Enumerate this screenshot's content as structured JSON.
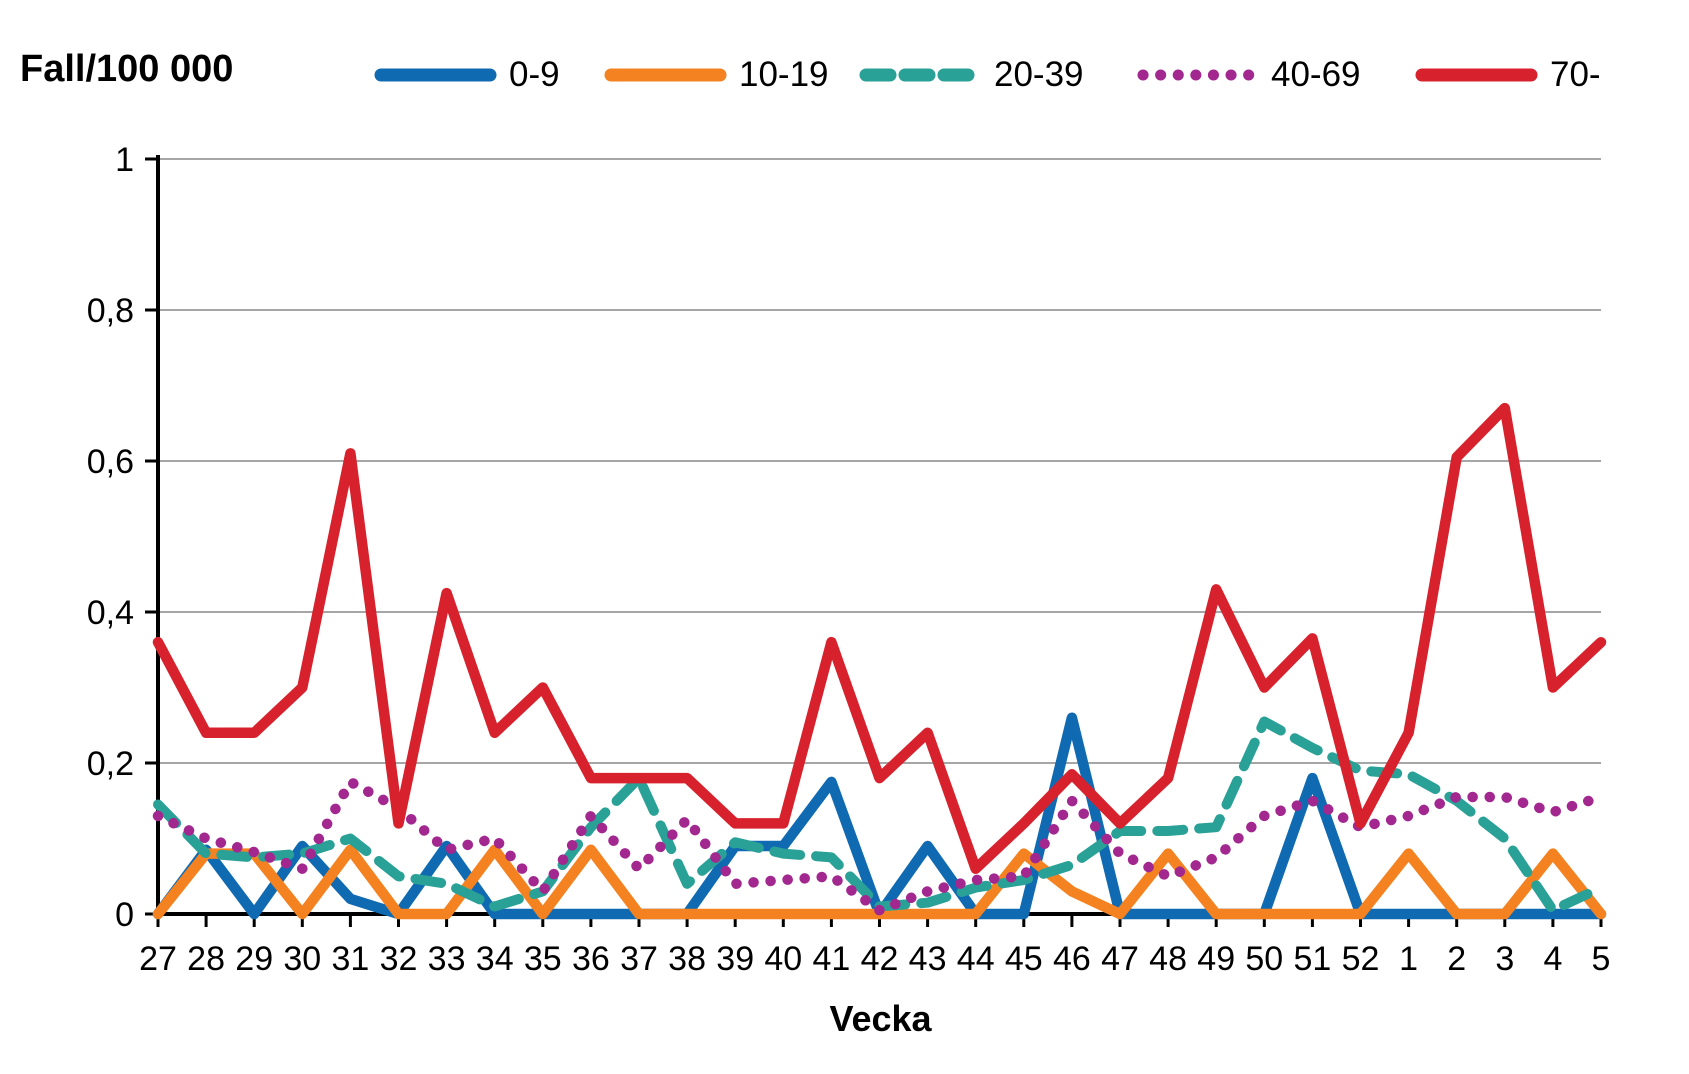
{
  "title": "Fall/100 000",
  "xlabel": "Vecka",
  "legend": {
    "items": [
      "0-9",
      "10-19",
      "20-39",
      "40-69",
      "70-"
    ]
  },
  "axis": {
    "ytick_labels": [
      "0",
      "0,2",
      "0,4",
      "0,6",
      "0,8",
      "1"
    ]
  },
  "chart_data": {
    "type": "line",
    "title": "Fall/100 000",
    "xlabel": "Vecka",
    "ylabel": "",
    "ylim": [
      0,
      1
    ],
    "ytick_values": [
      0,
      0.2,
      0.4,
      0.6,
      0.8,
      1
    ],
    "ytick_labels": [
      "0",
      "0,2",
      "0,4",
      "0,6",
      "0,8",
      "1"
    ],
    "grid": true,
    "legend_position": "top",
    "categories": [
      "27",
      "28",
      "29",
      "30",
      "31",
      "32",
      "33",
      "34",
      "35",
      "36",
      "37",
      "38",
      "39",
      "40",
      "41",
      "42",
      "43",
      "44",
      "45",
      "46",
      "47",
      "48",
      "49",
      "50",
      "51",
      "52",
      "1",
      "2",
      "3",
      "4",
      "5"
    ],
    "series": [
      {
        "name": "0-9",
        "color": "#0F6AB2",
        "style": "solid",
        "values": [
          0,
          0.085,
          0,
          0.09,
          0.02,
          0,
          0.09,
          0,
          0,
          0,
          0,
          0,
          0.09,
          0.09,
          0.175,
          0,
          0.09,
          0,
          0,
          0.26,
          0,
          0,
          0,
          0,
          0.18,
          0,
          0,
          0,
          0,
          0,
          0
        ]
      },
      {
        "name": "10-19",
        "color": "#F58220",
        "style": "solid",
        "values": [
          0,
          0.08,
          0.08,
          0,
          0.085,
          0,
          0,
          0.085,
          0,
          0.085,
          0,
          0,
          0,
          0,
          0,
          0,
          0,
          0,
          0.08,
          0.03,
          0,
          0.08,
          0,
          0,
          0,
          0,
          0.08,
          0,
          0,
          0.08,
          0
        ]
      },
      {
        "name": "20-39",
        "color": "#2AA196",
        "style": "dashed",
        "values": [
          0.145,
          0.08,
          0.075,
          0.08,
          0.1,
          0.05,
          0.04,
          0.01,
          0.03,
          0.115,
          0.18,
          0.04,
          0.095,
          0.08,
          0.075,
          0.01,
          0.015,
          0.035,
          0.045,
          0.065,
          0.11,
          0.11,
          0.115,
          0.255,
          0.22,
          0.19,
          0.185,
          0.15,
          0.1,
          0.005,
          0.035
        ]
      },
      {
        "name": "40-69",
        "color": "#A2278F",
        "style": "dotted",
        "values": [
          0.13,
          0.1,
          0.082,
          0.06,
          0.175,
          0.14,
          0.085,
          0.1,
          0.03,
          0.13,
          0.06,
          0.125,
          0.04,
          0.045,
          0.05,
          0.005,
          0.03,
          0.045,
          0.05,
          0.15,
          0.08,
          0.05,
          0.075,
          0.13,
          0.15,
          0.115,
          0.13,
          0.155,
          0.155,
          0.135,
          0.155
        ]
      },
      {
        "name": "70-",
        "color": "#D7222D",
        "style": "solid",
        "values": [
          0.36,
          0.24,
          0.24,
          0.3,
          0.61,
          0.12,
          0.425,
          0.24,
          0.3,
          0.18,
          0.18,
          0.18,
          0.12,
          0.12,
          0.36,
          0.18,
          0.24,
          0.06,
          0.12,
          0.185,
          0.12,
          0.18,
          0.43,
          0.3,
          0.365,
          0.12,
          0.24,
          0.605,
          0.67,
          0.3,
          0.36
        ]
      }
    ]
  }
}
